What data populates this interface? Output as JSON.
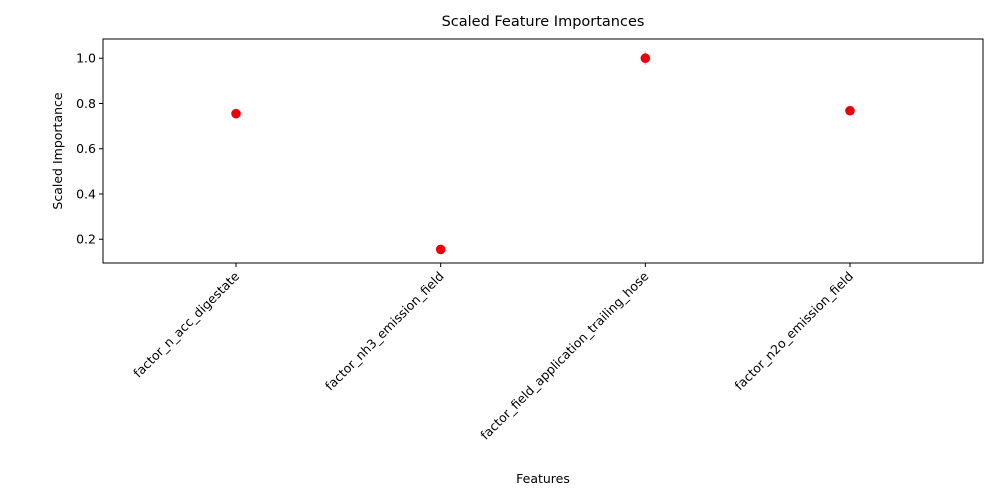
{
  "chart_data": {
    "type": "scatter",
    "title": "Scaled Feature Importances",
    "xlabel": "Features",
    "ylabel": "Scaled Importance",
    "categories": [
      "factor_n_acc_digestate",
      "factor_nh3_emission_field",
      "factor_field_application_trailing_hose",
      "factor_n2o_emission_field"
    ],
    "values": [
      0.755,
      0.155,
      1.0,
      0.768
    ],
    "error": [
      0.02,
      0.005,
      0.03,
      0.01
    ],
    "ylim": [
      0.095,
      1.085
    ],
    "yticks": [
      0.2,
      0.4,
      0.6,
      0.8,
      1.0
    ],
    "ytick_labels": [
      "0.2",
      "0.4",
      "0.6",
      "0.8",
      "1.0"
    ],
    "grid": false,
    "legend": "none",
    "marker_color": "#e8000b",
    "error_color": "#c8c8c8"
  }
}
